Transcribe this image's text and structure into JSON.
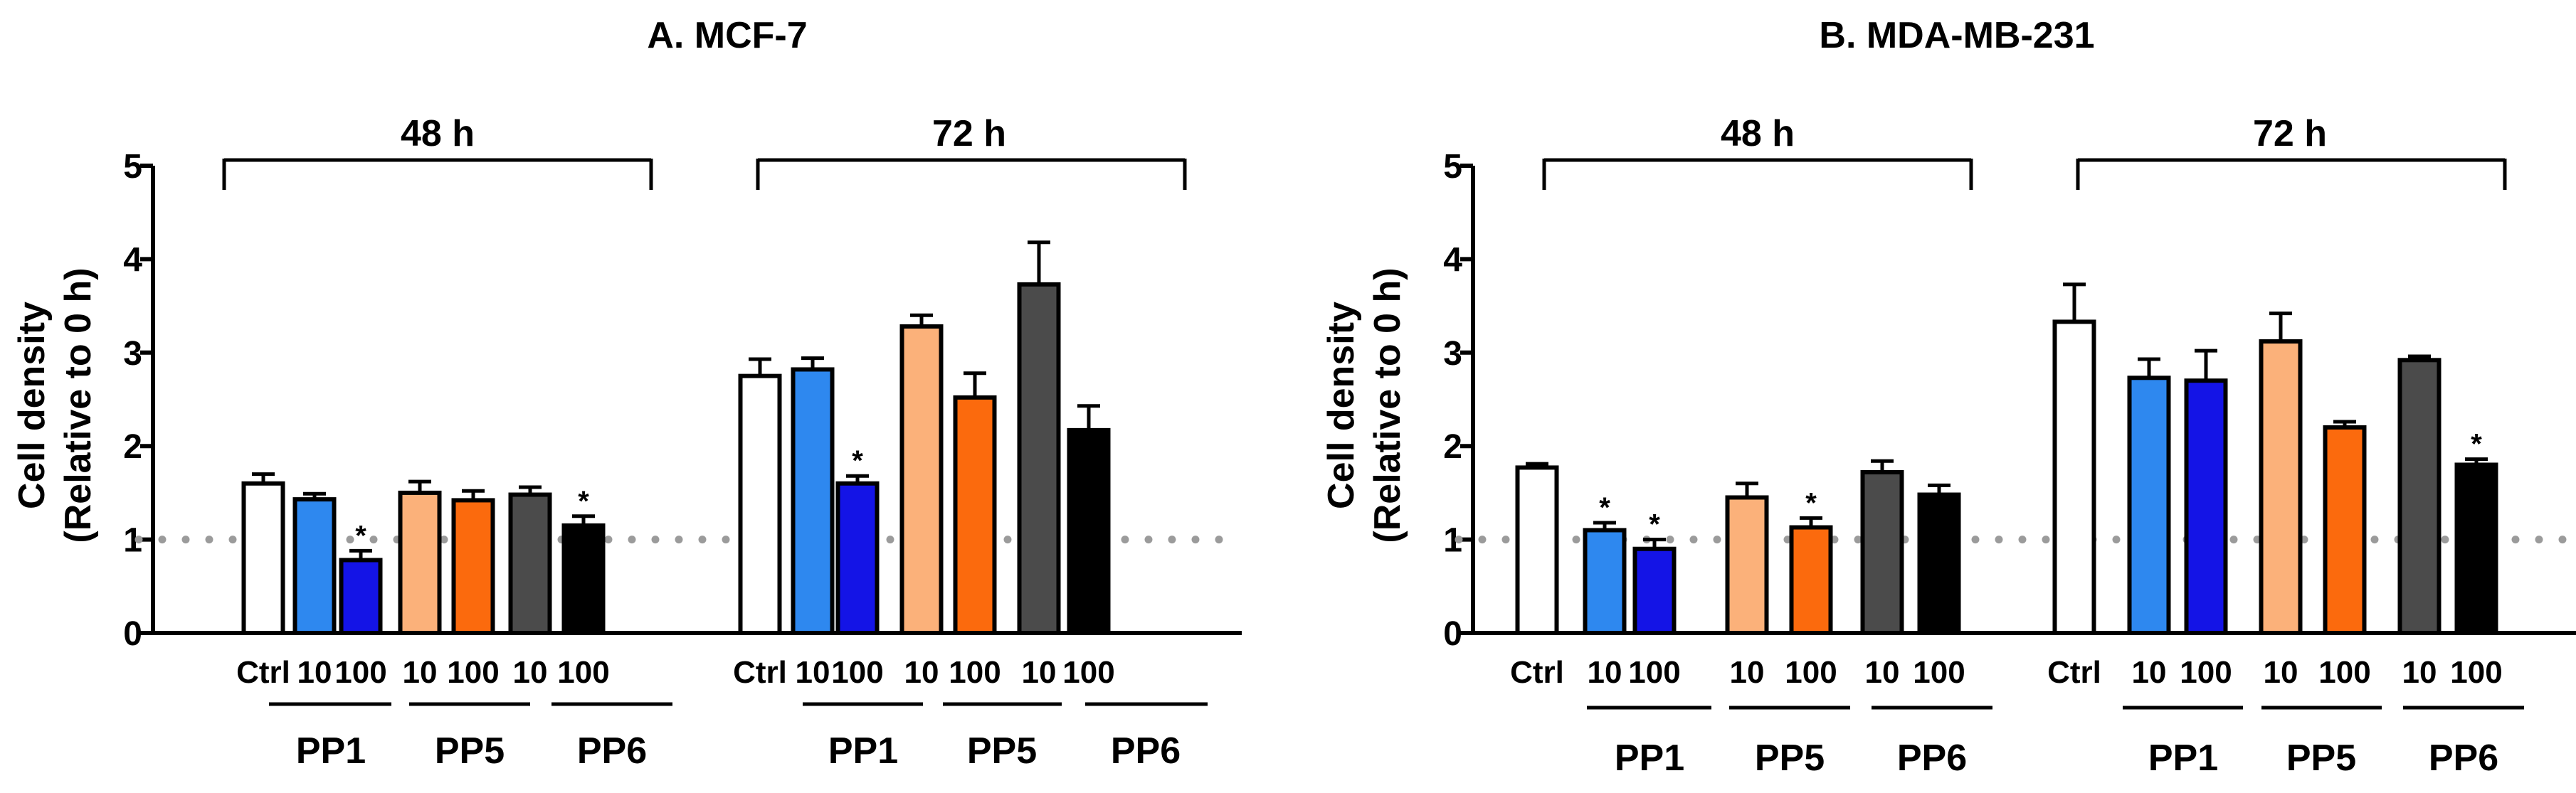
{
  "chart_data": [
    {
      "type": "bar",
      "title": "A. MCF-7",
      "ylabel_line1": "Cell density",
      "ylabel_line2": "(Relative to 0 h)",
      "ylim": [
        0,
        5
      ],
      "yticks": [
        "0",
        "1",
        "2",
        "3",
        "4",
        "5"
      ],
      "reference_line": 1,
      "bracket_labels": [
        "48 h",
        "72 h"
      ],
      "group_labels": [
        "PP1",
        "PP5",
        "PP6"
      ],
      "significance_marker": "*",
      "timepoints": [
        {
          "label": "48 h",
          "bars": [
            {
              "label": "Ctrl",
              "color": "#ffffff",
              "value": 1.6,
              "error": 0.1,
              "sig": false
            },
            {
              "label": "10",
              "color": "#2e88ef",
              "value": 1.43,
              "error": 0.06,
              "sig": false
            },
            {
              "label": "100",
              "color": "#1414e6",
              "value": 0.78,
              "error": 0.1,
              "sig": true
            },
            {
              "label": "10",
              "color": "#fbb17a",
              "value": 1.5,
              "error": 0.12,
              "sig": false
            },
            {
              "label": "100",
              "color": "#fb6a0d",
              "value": 1.42,
              "error": 0.1,
              "sig": false
            },
            {
              "label": "10",
              "color": "#4b4b4b",
              "value": 1.48,
              "error": 0.08,
              "sig": false
            },
            {
              "label": "100",
              "color": "#000000",
              "value": 1.15,
              "error": 0.1,
              "sig": true
            }
          ]
        },
        {
          "label": "72 h",
          "bars": [
            {
              "label": "Ctrl",
              "color": "#ffffff",
              "value": 2.75,
              "error": 0.18,
              "sig": false
            },
            {
              "label": "10",
              "color": "#2e88ef",
              "value": 2.82,
              "error": 0.12,
              "sig": false
            },
            {
              "label": "100",
              "color": "#1414e6",
              "value": 1.6,
              "error": 0.08,
              "sig": true
            },
            {
              "label": "10",
              "color": "#fbb17a",
              "value": 3.28,
              "error": 0.12,
              "sig": false
            },
            {
              "label": "100",
              "color": "#fb6a0d",
              "value": 2.52,
              "error": 0.26,
              "sig": false
            },
            {
              "label": "10",
              "color": "#4b4b4b",
              "value": 3.73,
              "error": 0.45,
              "sig": false
            },
            {
              "label": "100",
              "color": "#000000",
              "value": 2.17,
              "error": 0.26,
              "sig": false
            }
          ]
        }
      ]
    },
    {
      "type": "bar",
      "title": "B. MDA-MB-231",
      "ylabel_line1": "Cell density",
      "ylabel_line2": "(Relative to 0 h)",
      "ylim": [
        0,
        5
      ],
      "yticks": [
        "0",
        "1",
        "2",
        "3",
        "4",
        "5"
      ],
      "reference_line": 1,
      "bracket_labels": [
        "48 h",
        "72 h"
      ],
      "group_labels": [
        "PP1",
        "PP5",
        "PP6"
      ],
      "significance_marker": "*",
      "timepoints": [
        {
          "label": "48 h",
          "bars": [
            {
              "label": "Ctrl",
              "color": "#ffffff",
              "value": 1.77,
              "error": 0.04,
              "sig": false
            },
            {
              "label": "10",
              "color": "#2e88ef",
              "value": 1.1,
              "error": 0.08,
              "sig": true
            },
            {
              "label": "100",
              "color": "#1414e6",
              "value": 0.9,
              "error": 0.1,
              "sig": true
            },
            {
              "label": "10",
              "color": "#fbb17a",
              "value": 1.45,
              "error": 0.15,
              "sig": false
            },
            {
              "label": "100",
              "color": "#fb6a0d",
              "value": 1.13,
              "error": 0.1,
              "sig": true
            },
            {
              "label": "10",
              "color": "#4b4b4b",
              "value": 1.72,
              "error": 0.12,
              "sig": false
            },
            {
              "label": "100",
              "color": "#000000",
              "value": 1.48,
              "error": 0.1,
              "sig": false
            }
          ]
        },
        {
          "label": "72 h",
          "bars": [
            {
              "label": "Ctrl",
              "color": "#ffffff",
              "value": 3.33,
              "error": 0.4,
              "sig": false
            },
            {
              "label": "10",
              "color": "#2e88ef",
              "value": 2.73,
              "error": 0.2,
              "sig": false
            },
            {
              "label": "100",
              "color": "#1414e6",
              "value": 2.7,
              "error": 0.32,
              "sig": false
            },
            {
              "label": "10",
              "color": "#fbb17a",
              "value": 3.12,
              "error": 0.3,
              "sig": false
            },
            {
              "label": "100",
              "color": "#fb6a0d",
              "value": 2.2,
              "error": 0.06,
              "sig": false
            },
            {
              "label": "10",
              "color": "#4b4b4b",
              "value": 2.92,
              "error": 0.04,
              "sig": false
            },
            {
              "label": "100",
              "color": "#000000",
              "value": 1.8,
              "error": 0.06,
              "sig": true
            }
          ]
        }
      ]
    }
  ]
}
